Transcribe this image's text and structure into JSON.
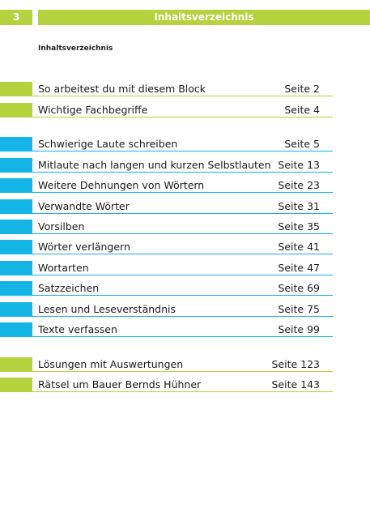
{
  "header": {
    "page_number": "3",
    "title": "Inhaltsverzeichnis"
  },
  "subheading": "Inhaltsverzeichnis",
  "colors": {
    "green": "#b6d23e",
    "blue": "#14b4e6"
  },
  "toc": [
    {
      "title": "So arbeitest du mit diesem Block",
      "page": "Seite 2",
      "color": "green"
    },
    {
      "title": "Wichtige Fachbegriffe",
      "page": "Seite 4",
      "color": "green"
    },
    {
      "title": "Schwierige Laute schreiben",
      "page": "Seite 5",
      "color": "blue"
    },
    {
      "title": "Mitlaute nach langen und kurzen Selbstlauten",
      "page": "Seite 13",
      "color": "blue"
    },
    {
      "title": "Weitere Dehnungen von Wörtern",
      "page": "Seite 23",
      "color": "blue"
    },
    {
      "title": "Verwandte Wörter",
      "page": "Seite 31",
      "color": "blue"
    },
    {
      "title": "Vorsilben",
      "page": "Seite 35",
      "color": "blue"
    },
    {
      "title": "Wörter verlängern",
      "page": "Seite 41",
      "color": "blue"
    },
    {
      "title": "Wortarten",
      "page": "Seite 47",
      "color": "blue"
    },
    {
      "title": "Satzzeichen",
      "page": "Seite 69",
      "color": "blue"
    },
    {
      "title": "Lesen und Leseverständnis",
      "page": "Seite 75",
      "color": "blue"
    },
    {
      "title": "Texte verfassen",
      "page": "Seite 99",
      "color": "blue"
    },
    {
      "title": "Lösungen mit Auswertungen",
      "page": "Seite 123",
      "color": "green"
    },
    {
      "title": "Rätsel um Bauer Bernds Hühner",
      "page": "Seite 143",
      "color": "green"
    }
  ]
}
